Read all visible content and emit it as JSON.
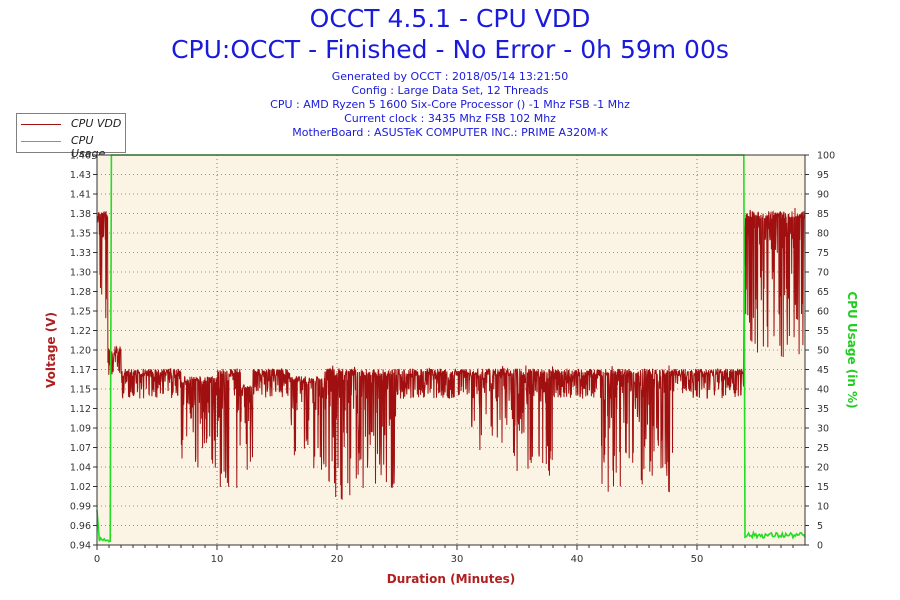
{
  "header": {
    "title": "OCCT 4.5.1 - CPU VDD",
    "subtitle": "CPU:OCCT - Finished - No Error - 0h 59m 00s",
    "info": [
      "Generated by OCCT : 2018/05/14 13:21:50",
      "Config : Large Data Set, 12 Threads",
      "CPU : AMD Ryzen 5 1600 Six-Core Processor () -1 Mhz FSB -1 Mhz",
      "Current clock : 3435 Mhz FSB 102 Mhz",
      "MotherBoard : ASUSTeK COMPUTER INC.: PRIME A320M-K"
    ]
  },
  "colors": {
    "vdd": "#a01010",
    "usage": "#22dd22",
    "plot_bg": "#fbf3e3",
    "grid": "#333333",
    "axis_label": "#b02020",
    "usage_label": "#22cc22"
  },
  "chart_data": {
    "type": "line",
    "xlabel": "Duration (Minutes)",
    "ylabel_left": "Voltage (V)",
    "ylabel_right": "CPU Usage (in %)",
    "xlim": [
      0,
      59
    ],
    "ylim_left": [
      0.94,
      1.46
    ],
    "ylim_right": [
      0,
      100
    ],
    "x_ticks": [
      0,
      10,
      20,
      30,
      40,
      50
    ],
    "y_ticks_left": [
      "0.94",
      "0.96",
      "0.99",
      "1.02",
      "1.04",
      "1.07",
      "1.09",
      "1.12",
      "1.15",
      "1.17",
      "1.20",
      "1.22",
      "1.25",
      "1.28",
      "1.30",
      "1.33",
      "1.35",
      "1.38",
      "1.41",
      "1.43",
      "1.46"
    ],
    "y_ticks_right": [
      0,
      5,
      10,
      15,
      20,
      25,
      30,
      35,
      40,
      45,
      50,
      55,
      60,
      65,
      70,
      75,
      80,
      85,
      90,
      95,
      100
    ],
    "grid": true,
    "legend_position": "top-left",
    "series": [
      {
        "name": "CPU VDD",
        "color": "#a01010",
        "segments": [
          {
            "from": 0.0,
            "to": 0.9,
            "min": 1.22,
            "max": 1.39
          },
          {
            "from": 0.9,
            "to": 2.0,
            "min": 1.18,
            "max": 1.21
          },
          {
            "from": 2.0,
            "to": 5.0,
            "min": 1.09,
            "max": 1.18
          },
          {
            "from": 5.0,
            "to": 7.0,
            "min": 1.1,
            "max": 1.18
          },
          {
            "from": 7.0,
            "to": 10.0,
            "min": 1.04,
            "max": 1.17
          },
          {
            "from": 10.0,
            "to": 12.0,
            "min": 1.01,
            "max": 1.18
          },
          {
            "from": 12.0,
            "to": 13.0,
            "min": 1.04,
            "max": 1.16
          },
          {
            "from": 13.0,
            "to": 16.0,
            "min": 1.12,
            "max": 1.18
          },
          {
            "from": 16.0,
            "to": 19.0,
            "min": 1.04,
            "max": 1.17
          },
          {
            "from": 19.0,
            "to": 25.0,
            "min": 1.0,
            "max": 1.18
          },
          {
            "from": 25.0,
            "to": 31.0,
            "min": 1.12,
            "max": 1.18
          },
          {
            "from": 31.0,
            "to": 35.0,
            "min": 1.05,
            "max": 1.18
          },
          {
            "from": 35.0,
            "to": 38.0,
            "min": 1.03,
            "max": 1.18
          },
          {
            "from": 38.0,
            "to": 42.0,
            "min": 1.12,
            "max": 1.18
          },
          {
            "from": 42.0,
            "to": 48.0,
            "min": 1.01,
            "max": 1.18
          },
          {
            "from": 48.0,
            "to": 53.9,
            "min": 1.13,
            "max": 1.18
          },
          {
            "from": 53.9,
            "to": 59.0,
            "min": 1.19,
            "max": 1.39
          }
        ],
        "points": [
          [
            0,
            1.33
          ],
          [
            0.9,
            1.2
          ],
          [
            2,
            1.17
          ],
          [
            10,
            1.06
          ],
          [
            20,
            1.04
          ],
          [
            25,
            1.17
          ],
          [
            31,
            1.17
          ],
          [
            36,
            1.06
          ],
          [
            42,
            1.17
          ],
          [
            46,
            1.05
          ],
          [
            53.9,
            1.17
          ],
          [
            54,
            1.35
          ],
          [
            59,
            1.32
          ]
        ]
      },
      {
        "name": "CPU Usage",
        "color": "#22dd22",
        "points": [
          [
            0,
            9
          ],
          [
            0.2,
            1
          ],
          [
            1.1,
            1
          ],
          [
            1.2,
            100
          ],
          [
            53.9,
            100
          ],
          [
            54.0,
            2
          ],
          [
            59,
            2
          ]
        ]
      }
    ]
  }
}
